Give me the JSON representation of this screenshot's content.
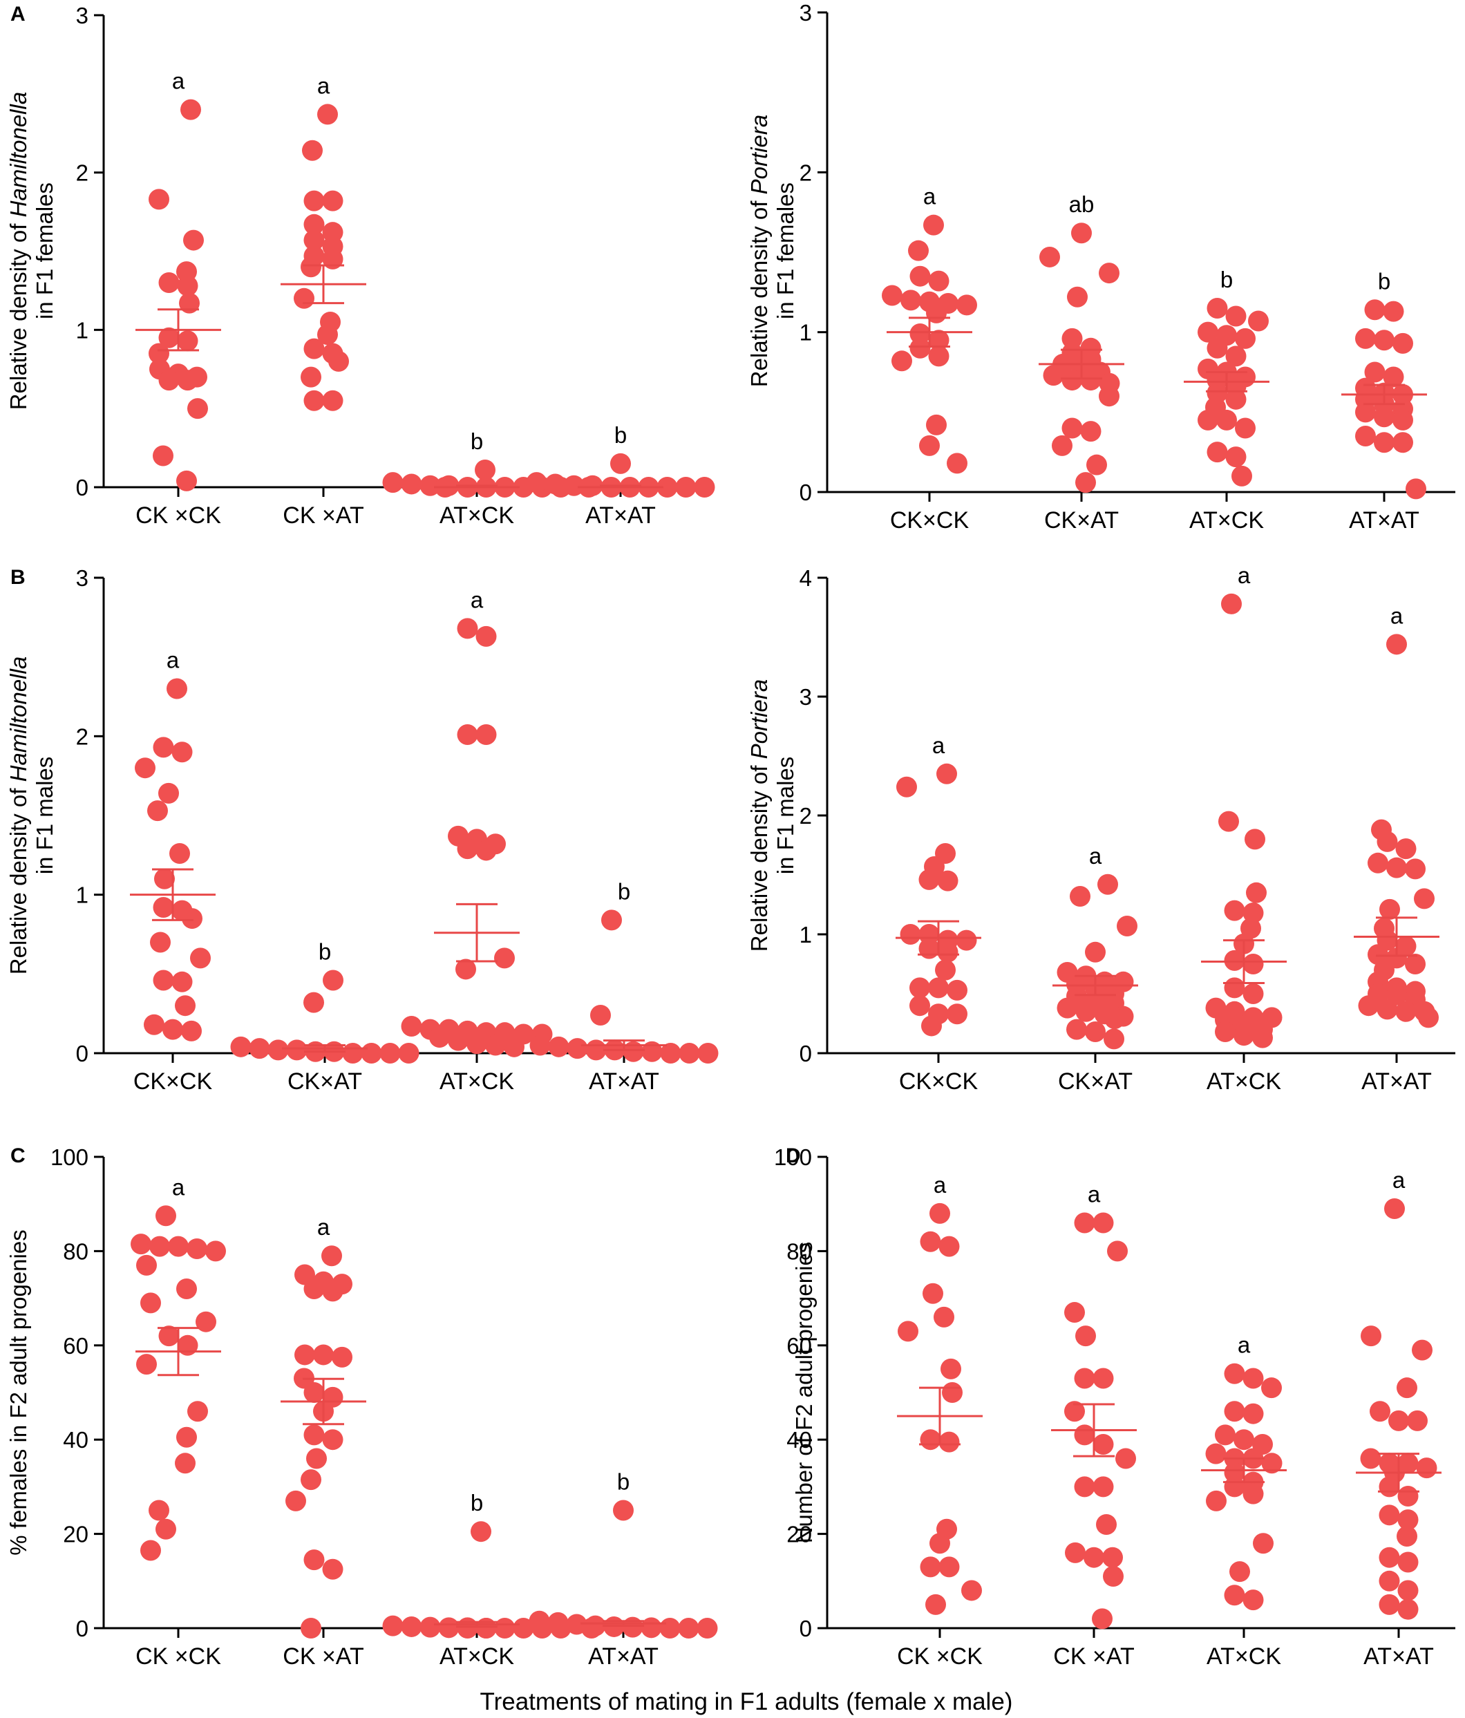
{
  "figure": {
    "x_title": "Treatments of mating in F1 adults (female x male)",
    "colors": {
      "point": "#F05050",
      "mean": "#E84848",
      "axis": "#000000"
    }
  },
  "chart_data": [
    {
      "id": "A-left",
      "panel_letter": "A",
      "type": "scatter",
      "ylabel_parts": [
        "Relative density of ",
        "Hamiltonella",
        "in F1 females"
      ],
      "ylim": [
        0,
        3
      ],
      "yticks": [
        0,
        1,
        2,
        3
      ],
      "categories": [
        "CK ×CK",
        "CK ×AT",
        "AT×CK",
        "AT×AT"
      ],
      "significance": [
        "a",
        "a",
        "b",
        "b"
      ],
      "means": [
        1.0,
        1.29,
        0.0,
        0.0
      ],
      "sem": [
        0.13,
        0.12,
        0.01,
        0.01
      ],
      "points": [
        [
          2.4,
          1.83,
          1.57,
          1.37,
          1.3,
          1.28,
          1.17,
          0.95,
          0.93,
          0.85,
          0.75,
          0.72,
          0.7,
          0.68,
          0.68,
          0.5,
          0.2,
          0.04
        ],
        [
          2.37,
          2.14,
          1.82,
          1.82,
          1.67,
          1.62,
          1.57,
          1.53,
          1.47,
          1.45,
          1.4,
          1.2,
          1.05,
          0.97,
          0.88,
          0.85,
          0.8,
          0.7,
          0.55,
          0.55
        ],
        [
          0.11,
          0.03,
          0.02,
          0.01,
          0.01,
          0.0,
          0.0,
          0.0,
          0.0,
          0.0,
          0.0,
          0.0
        ],
        [
          0.15,
          0.03,
          0.02,
          0.01,
          0.01,
          0.0,
          0.0,
          0.0,
          0.0,
          0.0,
          0.0,
          0.0
        ]
      ]
    },
    {
      "id": "A-right",
      "panel_letter": "",
      "type": "scatter",
      "ylabel_parts": [
        "Relative density of ",
        "Portiera",
        "in F1 females"
      ],
      "ylim": [
        0,
        3
      ],
      "yticks": [
        0,
        1,
        2,
        3
      ],
      "categories": [
        "CK×CK",
        "CK×AT",
        "AT×CK",
        "AT×AT"
      ],
      "significance": [
        "a",
        "ab",
        "b",
        "b"
      ],
      "means": [
        1.0,
        0.8,
        0.69,
        0.61
      ],
      "sem": [
        0.09,
        0.09,
        0.06,
        0.06
      ],
      "points": [
        [
          1.67,
          1.51,
          1.35,
          1.32,
          1.23,
          1.2,
          1.19,
          1.18,
          1.17,
          1.12,
          0.99,
          0.95,
          0.9,
          0.85,
          0.82,
          0.42,
          0.29,
          0.18
        ],
        [
          1.62,
          1.47,
          1.37,
          1.22,
          0.96,
          0.9,
          0.87,
          0.83,
          0.8,
          0.78,
          0.75,
          0.73,
          0.7,
          0.7,
          0.68,
          0.6,
          0.4,
          0.38,
          0.29,
          0.17,
          0.06
        ],
        [
          1.15,
          1.1,
          1.07,
          1.0,
          0.98,
          0.96,
          0.9,
          0.85,
          0.77,
          0.75,
          0.72,
          0.7,
          0.66,
          0.62,
          0.58,
          0.53,
          0.45,
          0.45,
          0.4,
          0.25,
          0.22,
          0.1
        ],
        [
          1.14,
          1.13,
          0.96,
          0.95,
          0.93,
          0.75,
          0.72,
          0.65,
          0.62,
          0.61,
          0.58,
          0.55,
          0.52,
          0.5,
          0.47,
          0.45,
          0.35,
          0.31,
          0.31,
          0.02
        ]
      ]
    },
    {
      "id": "B-left",
      "panel_letter": "B",
      "type": "scatter",
      "ylabel_parts": [
        "Relative density of ",
        "Hamiltonella",
        "in F1 males"
      ],
      "ylim": [
        0,
        3
      ],
      "yticks": [
        0,
        1,
        2,
        3
      ],
      "categories": [
        "CK×CK",
        "CK×AT",
        "AT×CK",
        "AT×AT"
      ],
      "significance": [
        "a",
        "b",
        "a",
        "b"
      ],
      "means": [
        1.0,
        0.03,
        0.76,
        0.05
      ],
      "sem": [
        0.16,
        0.02,
        0.18,
        0.03
      ],
      "points": [
        [
          2.3,
          1.93,
          1.9,
          1.8,
          1.64,
          1.53,
          1.26,
          1.1,
          0.92,
          0.9,
          0.85,
          0.7,
          0.6,
          0.46,
          0.45,
          0.3,
          0.18,
          0.15,
          0.14
        ],
        [
          0.46,
          0.32,
          0.04,
          0.03,
          0.02,
          0.02,
          0.01,
          0.01,
          0.0,
          0.0,
          0.0,
          0.0
        ],
        [
          2.68,
          2.63,
          2.01,
          2.01,
          1.37,
          1.35,
          1.32,
          1.29,
          1.28,
          0.6,
          0.53,
          0.17,
          0.15,
          0.15,
          0.14,
          0.13,
          0.13,
          0.12,
          0.12,
          0.1,
          0.08,
          0.06,
          0.05,
          0.04
        ],
        [
          0.84,
          0.24,
          0.05,
          0.04,
          0.03,
          0.02,
          0.02,
          0.01,
          0.01,
          0.0,
          0.0,
          0.0
        ]
      ]
    },
    {
      "id": "B-right",
      "panel_letter": "",
      "type": "scatter",
      "ylabel_parts": [
        "Relative density of  ",
        "Portiera",
        "in F1 males"
      ],
      "ylim": [
        0,
        4
      ],
      "yticks": [
        0,
        1,
        2,
        3,
        4
      ],
      "categories": [
        "CK×CK",
        "CK×AT",
        "AT×CK",
        "AT×AT"
      ],
      "significance": [
        "a",
        "a",
        "a",
        "a"
      ],
      "means": [
        0.97,
        0.57,
        0.77,
        0.98
      ],
      "sem": [
        0.14,
        0.08,
        0.18,
        0.16
      ],
      "points": [
        [
          2.35,
          2.24,
          1.68,
          1.57,
          1.46,
          1.45,
          1.0,
          1.0,
          0.95,
          0.95,
          0.88,
          0.85,
          0.7,
          0.55,
          0.55,
          0.53,
          0.4,
          0.33,
          0.33,
          0.23
        ],
        [
          1.42,
          1.32,
          1.07,
          0.85,
          0.68,
          0.65,
          0.6,
          0.6,
          0.58,
          0.55,
          0.5,
          0.48,
          0.45,
          0.42,
          0.38,
          0.35,
          0.33,
          0.31,
          0.29,
          0.2,
          0.18,
          0.12
        ],
        [
          3.78,
          1.95,
          1.8,
          1.35,
          1.2,
          1.18,
          1.05,
          0.92,
          0.78,
          0.75,
          0.55,
          0.5,
          0.38,
          0.35,
          0.3,
          0.3,
          0.28,
          0.23,
          0.2,
          0.18,
          0.15,
          0.13
        ],
        [
          3.44,
          1.88,
          1.78,
          1.72,
          1.6,
          1.56,
          1.55,
          1.3,
          1.21,
          1.05,
          0.95,
          0.9,
          0.83,
          0.8,
          0.75,
          0.7,
          0.6,
          0.55,
          0.52,
          0.5,
          0.49,
          0.45,
          0.4,
          0.37,
          0.35,
          0.35,
          0.3
        ]
      ]
    },
    {
      "id": "C",
      "panel_letter": "C",
      "type": "scatter",
      "ylabel_parts": [
        "% females in F2 adult progenies",
        "",
        ""
      ],
      "ylim": [
        0,
        100
      ],
      "yticks": [
        0,
        20,
        40,
        60,
        80,
        100
      ],
      "categories": [
        "CK ×CK",
        "CK ×AT",
        "AT×CK",
        "AT×AT"
      ],
      "significance": [
        "a",
        "a",
        "b",
        "b"
      ],
      "means": [
        58.7,
        48.1,
        0.8,
        1.0
      ],
      "sem": [
        5.0,
        4.8,
        0.5,
        0.5
      ],
      "points": [
        [
          87.5,
          81.5,
          81,
          81,
          80.5,
          80,
          77,
          72,
          69,
          65,
          62,
          60,
          56,
          46,
          40.5,
          35,
          25,
          21,
          16.5
        ],
        [
          79,
          75,
          73.5,
          73,
          72,
          71.5,
          58,
          58,
          57.5,
          53,
          50,
          49,
          46,
          41,
          40,
          36,
          31.5,
          27,
          14.5,
          12.5,
          0
        ],
        [
          20.5,
          0.5,
          0.3,
          0.2,
          0.1,
          0.1,
          0,
          0,
          0,
          0,
          0,
          0,
          0
        ],
        [
          25,
          1.5,
          1.2,
          0.8,
          0.5,
          0.3,
          0.2,
          0.1,
          0,
          0,
          0,
          0
        ]
      ]
    },
    {
      "id": "D",
      "panel_letter": "D",
      "type": "scatter",
      "ylabel_parts": [
        "Number of F2 adult progenies",
        "",
        ""
      ],
      "ylim": [
        0,
        100
      ],
      "yticks": [
        0,
        20,
        40,
        60,
        80,
        100
      ],
      "categories": [
        "CK ×CK",
        "CK ×AT",
        "AT×CK",
        "AT×AT"
      ],
      "significance": [
        "a",
        "a",
        "a",
        "a"
      ],
      "means": [
        45,
        42,
        33.5,
        33
      ],
      "sem": [
        6.0,
        5.5,
        2.5,
        4.0
      ],
      "points": [
        [
          88,
          82,
          81,
          71,
          66,
          63,
          55,
          50,
          40,
          39.5,
          21,
          18,
          13,
          13,
          8,
          5
        ],
        [
          86,
          86,
          80,
          67,
          62,
          53,
          53,
          46,
          41,
          39,
          36,
          30,
          30,
          22,
          16,
          15,
          15,
          11,
          2
        ],
        [
          54,
          53,
          51,
          46,
          45.5,
          41,
          40,
          39,
          37,
          36,
          36,
          35,
          33,
          31,
          30,
          28.5,
          27,
          18,
          12,
          7,
          6
        ],
        [
          89,
          62,
          59,
          51,
          46,
          44,
          44,
          36,
          35,
          35,
          34,
          33,
          30,
          28,
          24,
          23,
          19.5,
          15,
          14,
          10,
          8,
          5,
          4
        ]
      ]
    }
  ]
}
